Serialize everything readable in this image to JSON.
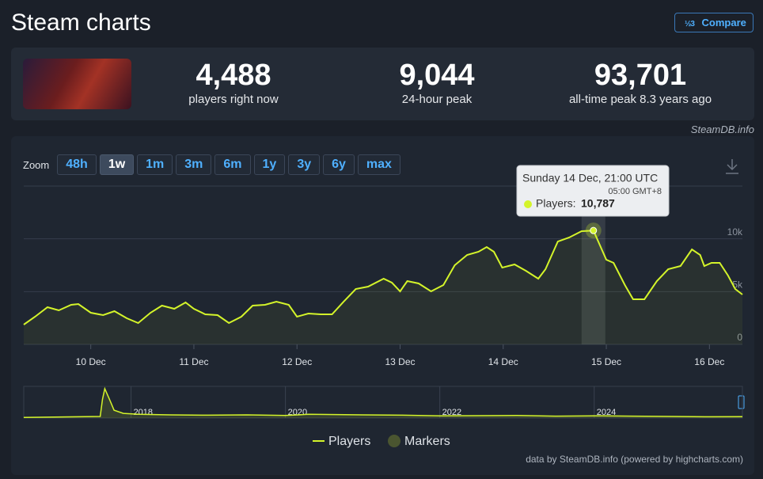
{
  "header": {
    "title": "Steam charts",
    "compare": "Compare"
  },
  "stats": [
    {
      "value": "4,488",
      "label": "players right now"
    },
    {
      "value": "9,044",
      "label": "24-hour peak"
    },
    {
      "value": "93,701",
      "label": "all-time peak 8.3 years ago"
    }
  ],
  "source": "SteamDB.info",
  "zoom": {
    "label": "Zoom",
    "options": [
      "48h",
      "1w",
      "1m",
      "3m",
      "6m",
      "1y",
      "3y",
      "6y",
      "max"
    ],
    "active": 1
  },
  "credits": "data by SteamDB.info (powered by highcharts.com)",
  "chart_data": [
    {
      "type": "line",
      "x": [
        9.35,
        9.46,
        9.58,
        9.69,
        9.81,
        9.88,
        10.0,
        10.12,
        10.23,
        10.35,
        10.46,
        10.58,
        10.69,
        10.81,
        10.92,
        11.0,
        11.11,
        11.23,
        11.34,
        11.46,
        11.57,
        11.69,
        11.8,
        11.92,
        12.0,
        12.11,
        12.23,
        12.34,
        12.46,
        12.57,
        12.69,
        12.84,
        12.92,
        13.0,
        13.07,
        13.18,
        13.3,
        13.42,
        13.53,
        13.65,
        13.76,
        13.84,
        13.91,
        13.99,
        14.11,
        14.22,
        14.34,
        14.41,
        14.53,
        14.64,
        14.76,
        14.875,
        15.0,
        15.07,
        15.18,
        15.26,
        15.37,
        15.49,
        15.6,
        15.72,
        15.83,
        15.91,
        15.95,
        16.02,
        16.1,
        16.18,
        16.25,
        16.32
      ],
      "series": [
        {
          "name": "Players",
          "color": "#d4f42a",
          "values": [
            1875,
            2625,
            3525,
            3225,
            3750,
            3825,
            3000,
            2775,
            3150,
            2475,
            2025,
            3000,
            3675,
            3375,
            3975,
            3375,
            2850,
            2775,
            2025,
            2625,
            3675,
            3750,
            4050,
            3750,
            2625,
            2925,
            2850,
            2850,
            4125,
            5250,
            5475,
            6225,
            5850,
            5025,
            6000,
            5775,
            5025,
            5625,
            7500,
            8475,
            8775,
            9225,
            8775,
            7275,
            7575,
            6975,
            6225,
            7125,
            9750,
            10125,
            10725,
            10787,
            8025,
            7725,
            5625,
            4275,
            4275,
            6000,
            7125,
            7425,
            9000,
            8475,
            7425,
            7725,
            7725,
            6525,
            5250,
            4725
          ]
        }
      ],
      "xlim": [
        9.35,
        16.32
      ],
      "xticks": [
        {
          "value": 10,
          "label": "10 Dec"
        },
        {
          "value": 11,
          "label": "11 Dec"
        },
        {
          "value": 12,
          "label": "12 Dec"
        },
        {
          "value": 13,
          "label": "13 Dec"
        },
        {
          "value": 14,
          "label": "14 Dec"
        },
        {
          "value": 15,
          "label": "15 Dec"
        },
        {
          "value": 16,
          "label": "16 Dec"
        }
      ],
      "ylim": [
        0,
        15000
      ],
      "yticks": [
        0,
        {
          "value": 5000,
          "label": "5k"
        },
        {
          "value": 10000,
          "label": "10k"
        }
      ],
      "grid": true,
      "markers": {
        "name": "Markers",
        "color": "#4a5530"
      },
      "tooltip": {
        "title": "Sunday 14 Dec, 21:00 UTC",
        "subtitle": "05:00 GMT+8",
        "label": "Players:",
        "x": 14.875,
        "value": 10787,
        "value_label": "10,787"
      }
    },
    {
      "type": "area",
      "x": [
        2016.61,
        2017.6,
        2017.63,
        2017.66,
        2017.72,
        2017.78,
        2017.9,
        2018.1,
        2018.5,
        2019.0,
        2019.5,
        2020.0,
        2020.3,
        2021.0,
        2021.5,
        2022.0,
        2023.0,
        2023.5,
        2024.0,
        2024.5,
        2025.0,
        2025.5,
        2025.92
      ],
      "series": [
        {
          "name": "Players",
          "color": "#d4f42a",
          "values": [
            2000,
            5000,
            60000,
            93701,
            60000,
            25000,
            15000,
            12000,
            10000,
            9000,
            10000,
            8000,
            12000,
            10000,
            9000,
            7000,
            8000,
            6000,
            7000,
            6000,
            5000,
            4000,
            4488
          ]
        }
      ],
      "xlim": [
        2016.61,
        2025.92
      ],
      "xticks": [
        2018,
        2020,
        2022,
        2024
      ],
      "ylim": [
        0,
        96000
      ]
    }
  ]
}
